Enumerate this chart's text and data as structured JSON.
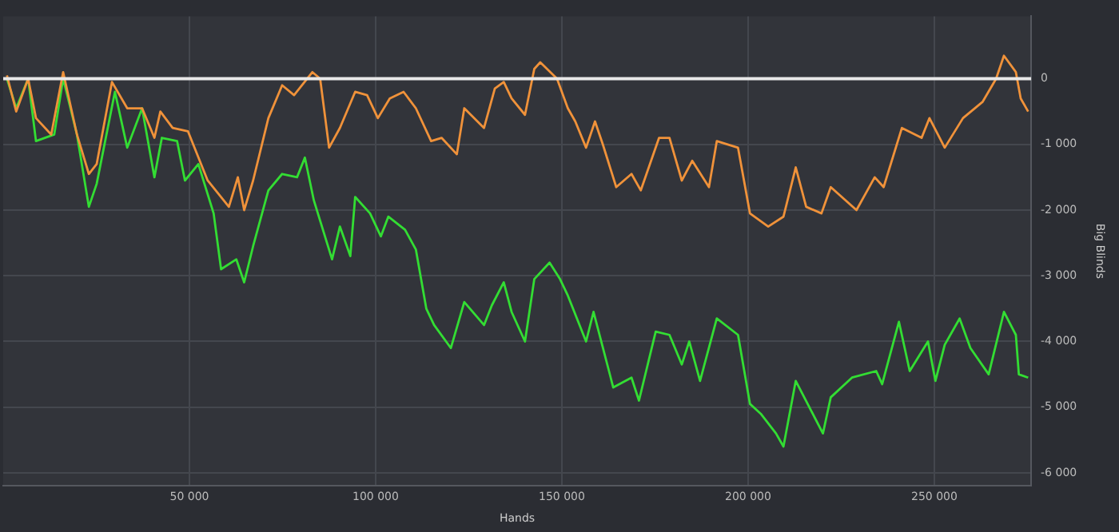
{
  "chart_data": {
    "type": "line",
    "xlabel": "Hands",
    "ylabel": "Big Blinds",
    "xlim": [
      0,
      276000
    ],
    "ylim": [
      -6200,
      950
    ],
    "xticks": [
      {
        "value": 50000,
        "label": "50 000"
      },
      {
        "value": 100000,
        "label": "100 000"
      },
      {
        "value": 150000,
        "label": "150 000"
      },
      {
        "value": 200000,
        "label": "200 000"
      },
      {
        "value": 250000,
        "label": "250 000"
      }
    ],
    "yticks": [
      0,
      {
        "value": -1000,
        "label": "-1 000"
      },
      {
        "value": -2000,
        "label": "-2 000"
      },
      {
        "value": -3000,
        "label": "-3 000"
      },
      {
        "value": -4000,
        "label": "-4 000"
      },
      {
        "value": -5000,
        "label": "-5 000"
      },
      {
        "value": -6000,
        "label": "-6 000"
      }
    ],
    "grid": true,
    "legend": false,
    "marker": "none",
    "line_style": "solid",
    "ref_lines": [
      {
        "axis": "y",
        "value": 0,
        "color": "#e8e8e8"
      }
    ],
    "series": [
      {
        "color": "#f0923a",
        "x": [
          1000,
          3500,
          6700,
          8800,
          12900,
          16100,
          19800,
          23000,
          25100,
          29200,
          33300,
          37300,
          40600,
          42200,
          45500,
          49600,
          54900,
          60600,
          63000,
          64700,
          67100,
          71200,
          74900,
          78100,
          83000,
          85100,
          87500,
          90400,
          94500,
          97700,
          100600,
          103800,
          107500,
          110800,
          114900,
          117700,
          121800,
          123800,
          129100,
          132000,
          134400,
          136500,
          140100,
          142600,
          144200,
          148700,
          151600,
          153600,
          156500,
          158900,
          161000,
          164600,
          168700,
          171200,
          176100,
          178900,
          182200,
          185000,
          189500,
          191600,
          197300,
          200500,
          205400,
          209500,
          212800,
          215600,
          219700,
          222200,
          229100,
          234000,
          236400,
          241300,
          246600,
          248700,
          252800,
          257700,
          263000,
          266600,
          268700,
          271900,
          273200,
          275200
        ],
        "values": [
          50,
          -500,
          0,
          -600,
          -850,
          100,
          -850,
          -1450,
          -1300,
          -50,
          -450,
          -450,
          -900,
          -500,
          -750,
          -800,
          -1550,
          -1950,
          -1500,
          -2000,
          -1550,
          -600,
          -100,
          -250,
          100,
          0,
          -1050,
          -750,
          -200,
          -250,
          -600,
          -300,
          -200,
          -450,
          -950,
          -900,
          -1150,
          -450,
          -750,
          -150,
          -50,
          -300,
          -550,
          150,
          250,
          0,
          -450,
          -650,
          -1050,
          -650,
          -1000,
          -1650,
          -1450,
          -1700,
          -900,
          -900,
          -1550,
          -1250,
          -1650,
          -950,
          -1050,
          -2050,
          -2250,
          -2100,
          -1350,
          -1950,
          -2050,
          -1650,
          -2000,
          -1500,
          -1650,
          -750,
          -900,
          -600,
          -1050,
          -600,
          -350,
          0,
          350,
          100,
          -300,
          -500
        ]
      },
      {
        "color": "#33dd33",
        "x": [
          1000,
          3500,
          6700,
          8800,
          13700,
          16100,
          19800,
          23000,
          25100,
          30000,
          33300,
          37300,
          40600,
          42600,
          46700,
          48800,
          52400,
          56500,
          58500,
          62600,
          64700,
          67100,
          71200,
          74900,
          78900,
          81000,
          83400,
          88300,
          90400,
          93200,
          94500,
          98500,
          101400,
          103400,
          107900,
          110800,
          113600,
          115700,
          120200,
          123800,
          129100,
          131200,
          134400,
          136500,
          140100,
          142600,
          146700,
          149500,
          151600,
          156500,
          158500,
          163800,
          168700,
          170700,
          175200,
          178900,
          182200,
          184200,
          187100,
          191600,
          197300,
          200500,
          203400,
          207500,
          209500,
          212800,
          216900,
          220100,
          222200,
          227900,
          234400,
          236000,
          240500,
          243400,
          248300,
          250300,
          252800,
          256800,
          259700,
          264600,
          268700,
          271900,
          272700,
          275200
        ],
        "values": [
          0,
          -450,
          0,
          -950,
          -850,
          0,
          -850,
          -1950,
          -1600,
          -200,
          -1050,
          -450,
          -1500,
          -900,
          -950,
          -1550,
          -1300,
          -2050,
          -2900,
          -2750,
          -3100,
          -2550,
          -1700,
          -1450,
          -1500,
          -1200,
          -1850,
          -2750,
          -2250,
          -2700,
          -1800,
          -2050,
          -2400,
          -2100,
          -2300,
          -2600,
          -3500,
          -3750,
          -4100,
          -3400,
          -3750,
          -3450,
          -3100,
          -3550,
          -4000,
          -3050,
          -2800,
          -3050,
          -3300,
          -4000,
          -3550,
          -4700,
          -4550,
          -4900,
          -3850,
          -3900,
          -4350,
          -4000,
          -4600,
          -3650,
          -3900,
          -4950,
          -5100,
          -5400,
          -5600,
          -4600,
          -5050,
          -5400,
          -4850,
          -4550,
          -4450,
          -4650,
          -3700,
          -4450,
          -4000,
          -4600,
          -4050,
          -3650,
          -4100,
          -4500,
          -3550,
          -3900,
          -4500,
          -4550
        ]
      }
    ]
  }
}
